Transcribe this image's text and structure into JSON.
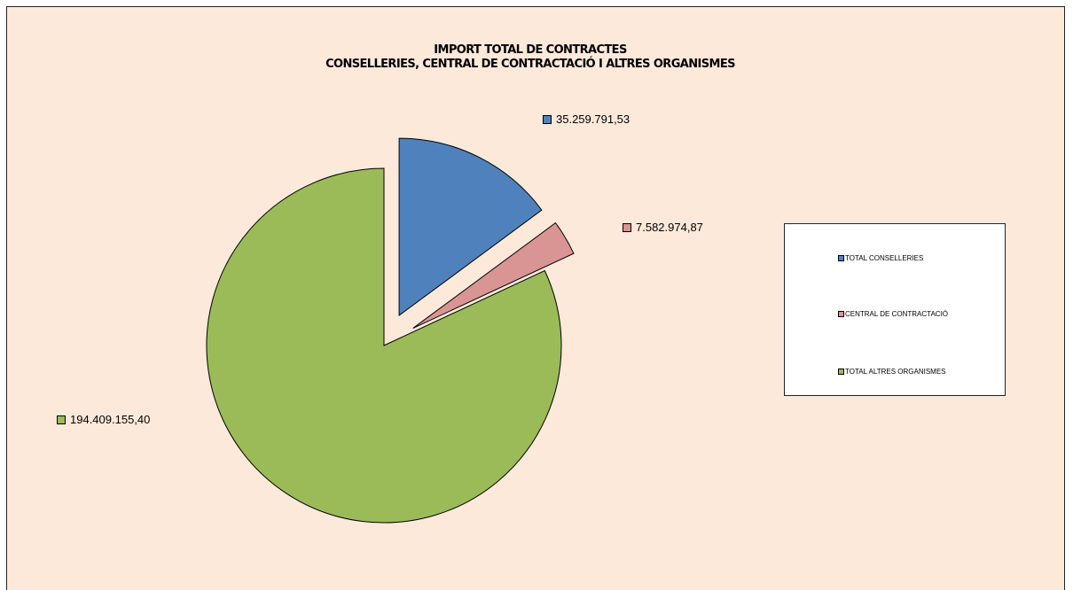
{
  "chart_data": {
    "type": "pie",
    "title": [
      "IMPORT TOTAL DE CONTRACTES",
      "CONSELLERIES, CENTRAL DE CONTRACTACIÓ I ALTRES ORGANISMES"
    ],
    "legend_position": "right",
    "slices": [
      {
        "name": "TOTAL CONSELLERIES",
        "value": 35259791.53,
        "label": "35.259.791,53",
        "color": "#4f81bd",
        "exploded": true
      },
      {
        "name": "CENTRAL DE CONTRACTACIÓ",
        "value": 7582974.87,
        "label": "7.582.974,87",
        "color": "#d99594",
        "exploded": true
      },
      {
        "name": "TOTAL ALTRES ORGANISMES",
        "value": 194409155.4,
        "label": "194.409.155,40",
        "color": "#9bbb59",
        "exploded": false
      }
    ]
  }
}
